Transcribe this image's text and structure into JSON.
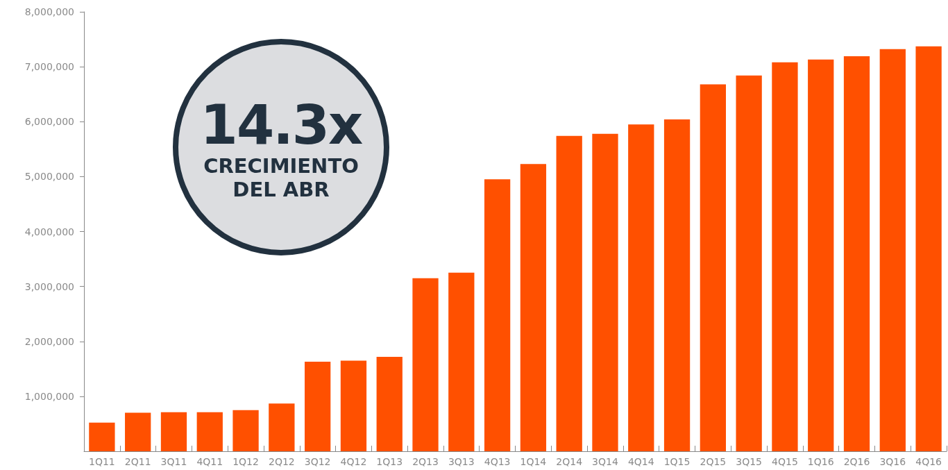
{
  "chart_data": {
    "type": "bar",
    "categories": [
      "1Q11",
      "2Q11",
      "3Q11",
      "4Q11",
      "1Q12",
      "2Q12",
      "3Q12",
      "4Q12",
      "1Q13",
      "2Q13",
      "3Q13",
      "4Q13",
      "1Q14",
      "2Q14",
      "3Q14",
      "4Q14",
      "1Q15",
      "2Q15",
      "3Q15",
      "4Q15",
      "1Q16",
      "2Q16",
      "3Q16",
      "4Q16"
    ],
    "values": [
      520000,
      700000,
      710000,
      710000,
      750000,
      870000,
      1630000,
      1650000,
      1720000,
      3150000,
      3250000,
      4950000,
      5230000,
      5740000,
      5780000,
      5950000,
      6040000,
      6680000,
      6840000,
      7080000,
      7130000,
      7190000,
      7320000,
      7370000
    ],
    "color": "#ff5000",
    "ylim": [
      0,
      8000000
    ],
    "yticks": [
      {
        "value": 1000000,
        "label": "1,000,000"
      },
      {
        "value": 2000000,
        "label": "2,000,000"
      },
      {
        "value": 3000000,
        "label": "3,000,000"
      },
      {
        "value": 4000000,
        "label": "4,000,000"
      },
      {
        "value": 5000000,
        "label": "5,000,000"
      },
      {
        "value": 6000000,
        "label": "6,000,000"
      },
      {
        "value": 7000000,
        "label": "7,000,000"
      },
      {
        "value": 8000000,
        "label": "8,000,000"
      }
    ],
    "grid": false,
    "annotations": [
      "14.3x",
      "CRECIMIENTO DEL ABR"
    ]
  }
}
